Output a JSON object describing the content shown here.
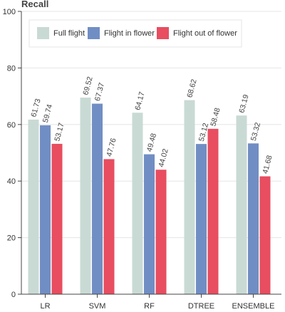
{
  "chart_data": {
    "type": "bar",
    "title": "Recall",
    "xlabel": "",
    "ylabel": "",
    "categories": [
      "LR",
      "SVM",
      "RF",
      "DTREE",
      "ENSEMBLE"
    ],
    "series": [
      {
        "name": "Full flight",
        "color": "#c9dad5",
        "values": [
          61.73,
          69.52,
          64.17,
          68.62,
          63.19
        ]
      },
      {
        "name": "Flight in flower",
        "color": "#718ec4",
        "values": [
          59.74,
          67.37,
          49.48,
          53.12,
          53.32
        ]
      },
      {
        "name": "Flight out of flower",
        "color": "#e84d60",
        "values": [
          53.17,
          47.76,
          44.02,
          58.48,
          41.68
        ]
      }
    ],
    "ylim": [
      0,
      100
    ],
    "yticks": [
      0,
      20,
      40,
      60,
      80,
      100
    ],
    "grid": true,
    "legend_position": "top-left"
  }
}
